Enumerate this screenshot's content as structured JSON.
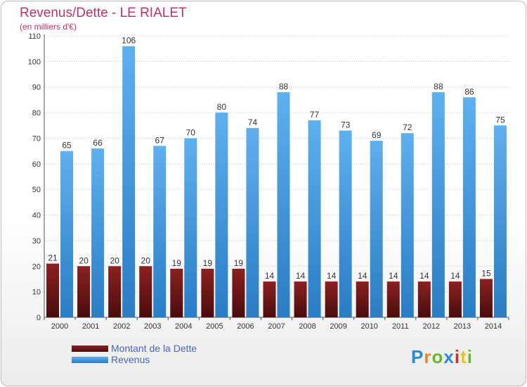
{
  "chart_data": {
    "type": "bar",
    "title": "Revenus/Dette - LE RIALET",
    "subtitle": "(en milliers d'€)",
    "categories": [
      "2000",
      "2001",
      "2002",
      "2003",
      "2004",
      "2005",
      "2006",
      "2007",
      "2008",
      "2009",
      "2010",
      "2011",
      "2012",
      "2013",
      "2014"
    ],
    "series": [
      {
        "name": "Montant de la Dette",
        "color": "#7a1a1a",
        "values": [
          21,
          20,
          20,
          20,
          19,
          19,
          19,
          14,
          14,
          14,
          14,
          14,
          14,
          14,
          15
        ]
      },
      {
        "name": "Revenus",
        "color": "#3d95dc",
        "values": [
          65,
          66,
          106,
          67,
          70,
          80,
          74,
          88,
          77,
          73,
          69,
          72,
          88,
          86,
          75
        ]
      }
    ],
    "ylim": [
      0,
      110
    ],
    "yticks": [
      0,
      10,
      20,
      30,
      40,
      50,
      60,
      70,
      80,
      90,
      100,
      110
    ],
    "grid": true,
    "legend": "bottom-left"
  },
  "logo": {
    "text": "Proxiti"
  }
}
